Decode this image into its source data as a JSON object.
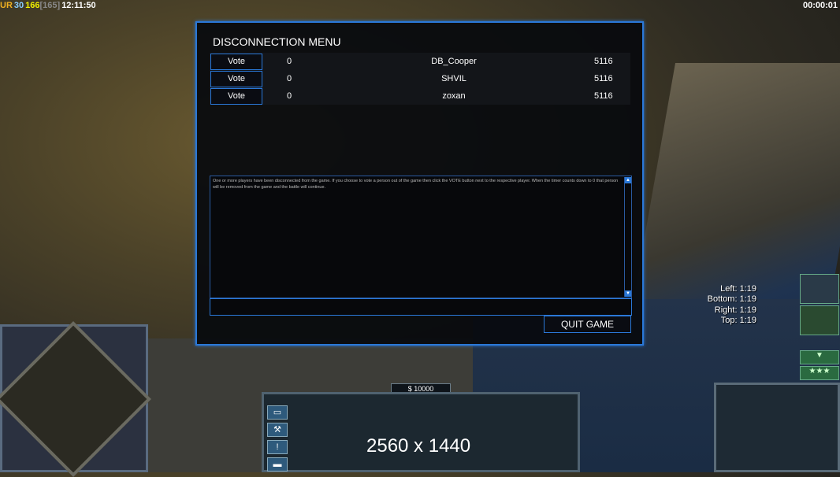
{
  "hud": {
    "ur_label": "UR",
    "ur_value": "30",
    "fps": "166",
    "fps_bracket": "[165]",
    "clock": "12:11:50",
    "game_time": "00:00:01"
  },
  "dialog": {
    "title": "DISCONNECTION MENU",
    "players": [
      {
        "vote_label": "Vote",
        "count": "0",
        "name": "DB_Cooper",
        "score": "5116"
      },
      {
        "vote_label": "Vote",
        "count": "0",
        "name": "SHVIL",
        "score": "5116"
      },
      {
        "vote_label": "Vote",
        "count": "0",
        "name": "zoxan",
        "score": "5116"
      }
    ],
    "message": "One or more players have been disconnected from the game. If you choose to vote a person out of the game then click the VOTE button next to the respective player. When the timer counts down to 0 that person will be removed from the game and the battle will continue.",
    "chat_value": "",
    "quit_label": "QUIT GAME"
  },
  "timers": [
    "Left: 1:19",
    "Bottom: 1:19",
    "Right: 1:19",
    "Top: 1:19"
  ],
  "command_bar": {
    "money": "$ 10000",
    "resolution_overlay": "2560 x 1440"
  },
  "colors": {
    "accent": "#2a78d8",
    "ur": "#f0b020",
    "fps": "#f0f000"
  }
}
